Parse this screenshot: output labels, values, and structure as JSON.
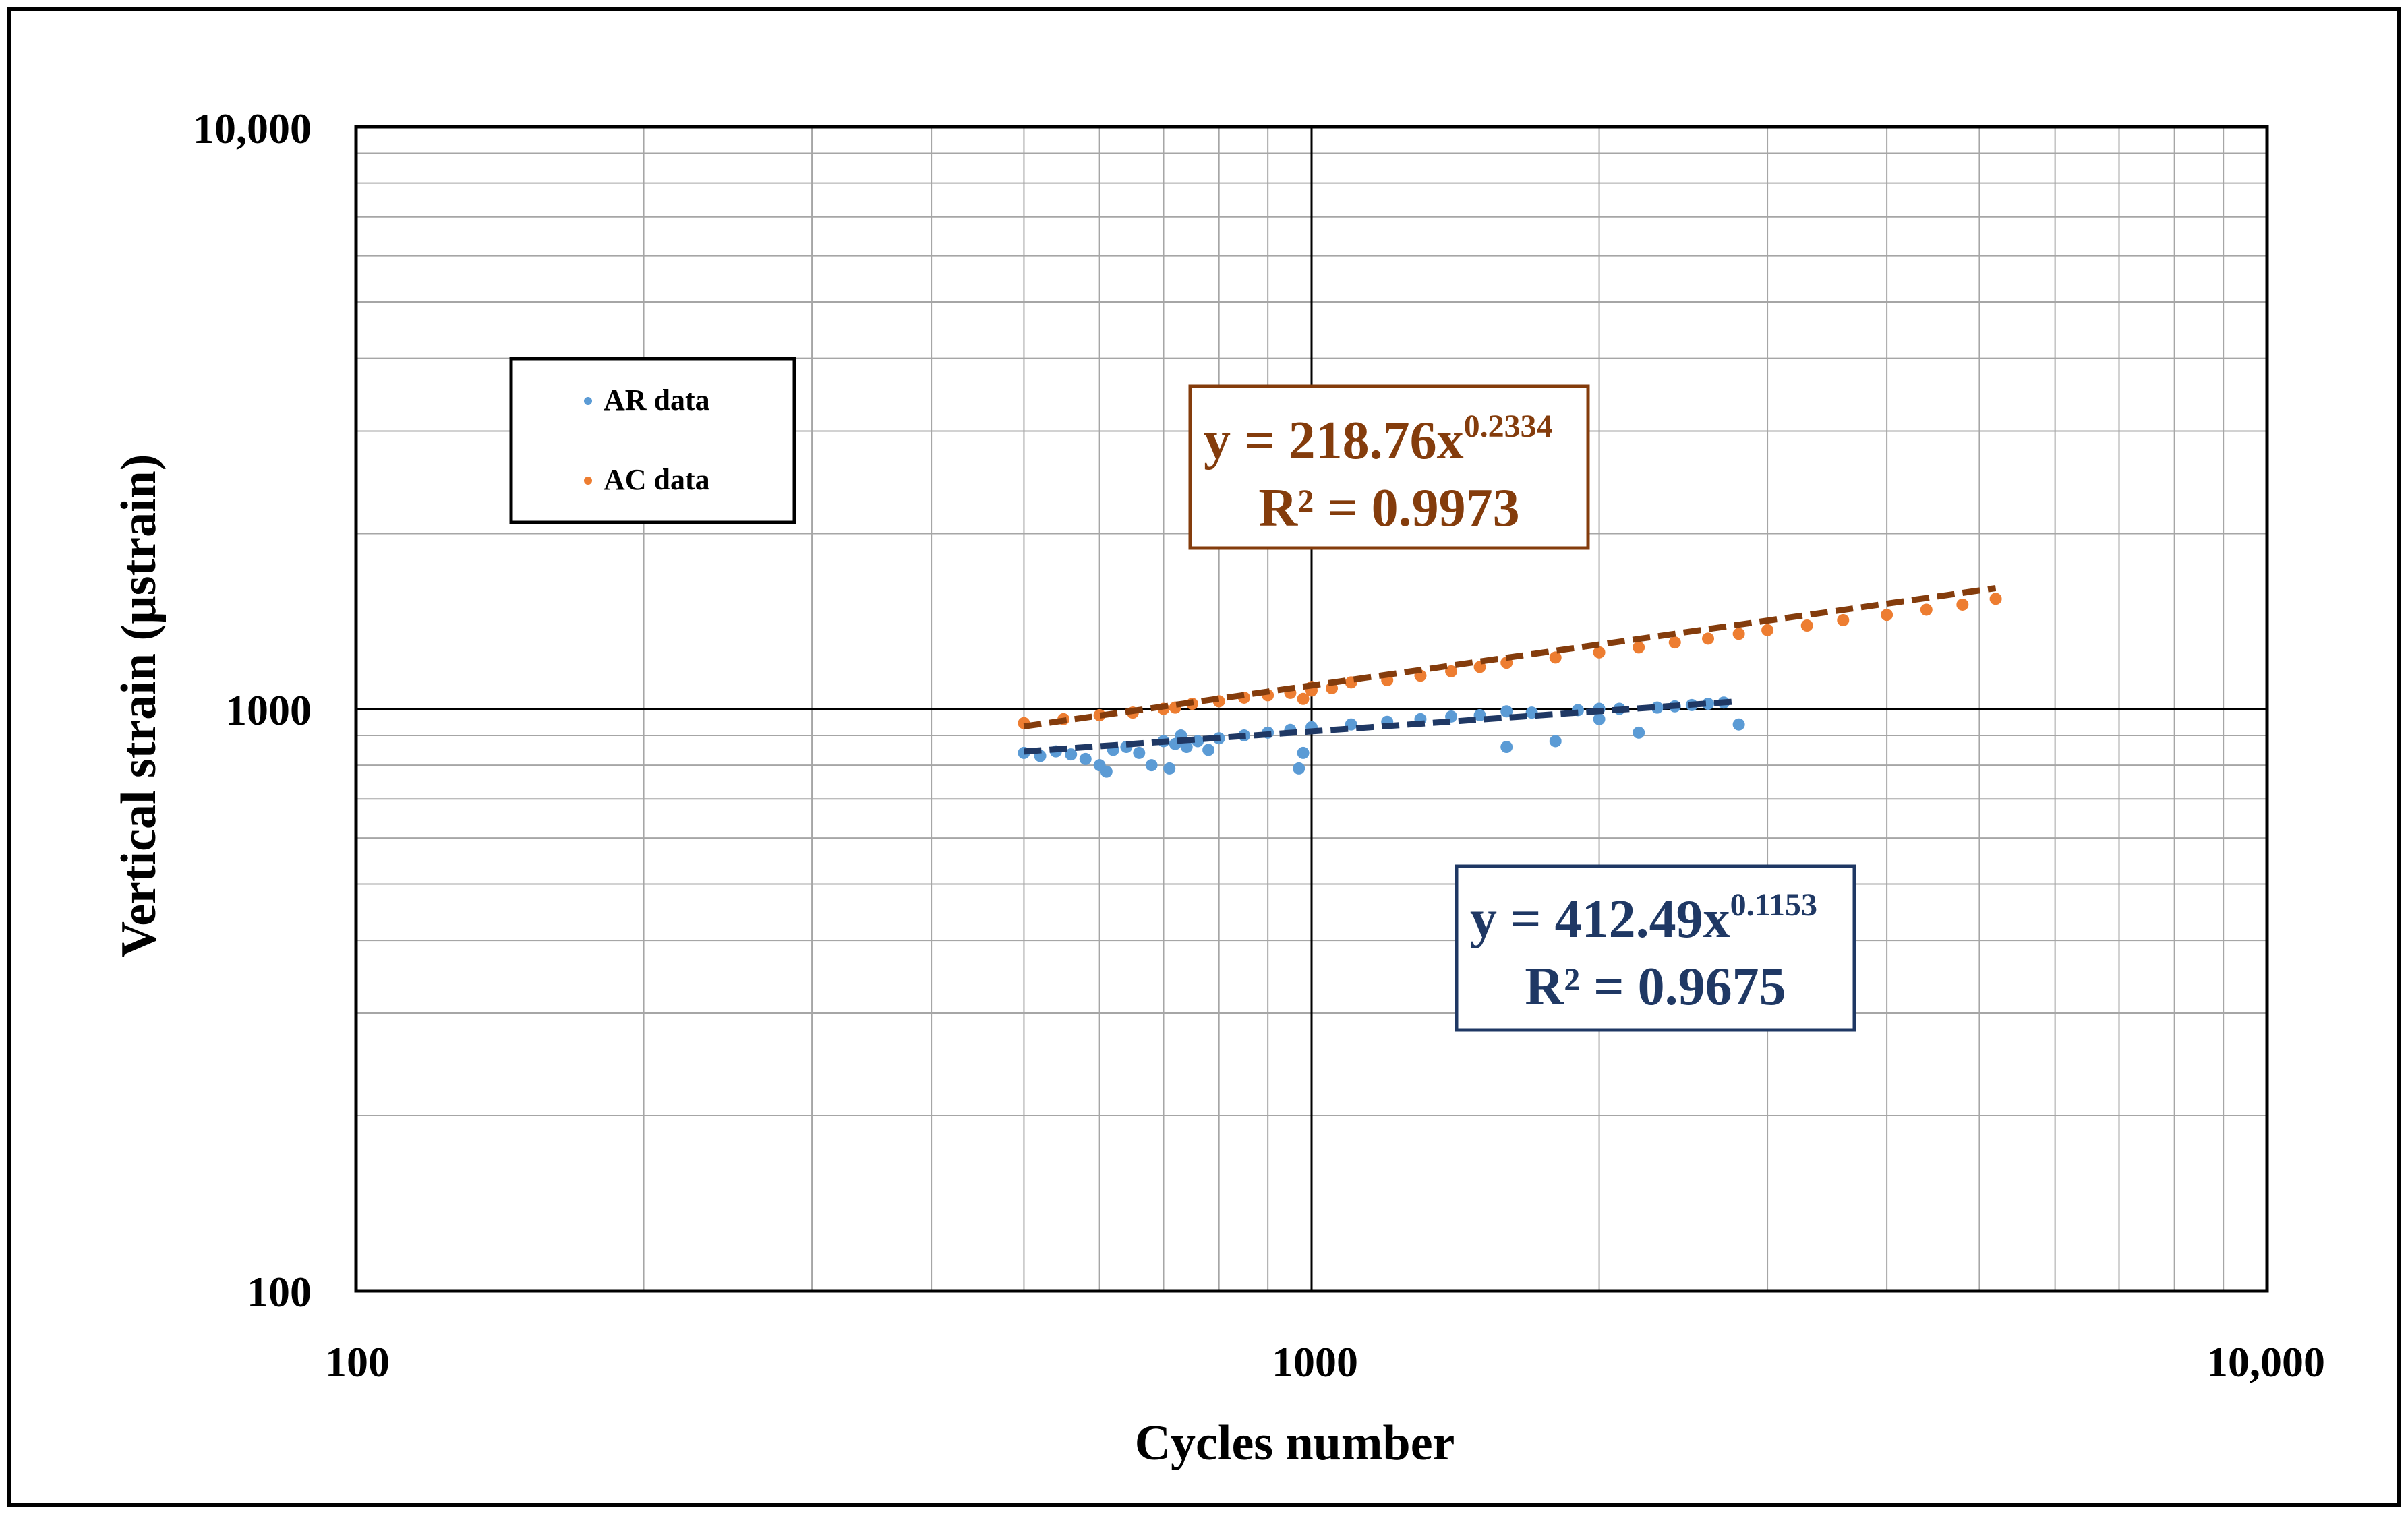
{
  "chart_data": {
    "type": "scatter",
    "scale": "log-log",
    "title": "",
    "xlabel": "Cycles number",
    "ylabel": "Vertical strain (µstrain)",
    "xlim": [
      100,
      10000
    ],
    "ylim": [
      100,
      10000
    ],
    "x_tick_labels": [
      "100",
      "1000",
      "10,000"
    ],
    "y_tick_labels": [
      "100",
      "1000",
      "10,000"
    ],
    "grid": true,
    "legend": {
      "position": "left-upper",
      "entries": [
        "AR data",
        "AC data"
      ]
    },
    "colors": {
      "ar": "#5b9bd5",
      "ac": "#ed7d31",
      "ar_trend": "#1f3864",
      "ac_trend": "#843c0c"
    },
    "series": [
      {
        "name": "AR data",
        "x": [
          500,
          520,
          540,
          560,
          580,
          600,
          610,
          620,
          640,
          660,
          680,
          700,
          710,
          720,
          730,
          740,
          760,
          780,
          800,
          850,
          900,
          950,
          970,
          980,
          1000,
          1100,
          1200,
          1300,
          1400,
          1500,
          1600,
          1600,
          1700,
          1800,
          1900,
          2000,
          2000,
          2100,
          2200,
          2300,
          2400,
          2500,
          2600,
          2700,
          2800
        ],
        "y": [
          840,
          830,
          845,
          835,
          820,
          800,
          780,
          850,
          860,
          840,
          800,
          880,
          790,
          870,
          900,
          860,
          880,
          850,
          890,
          900,
          910,
          920,
          790,
          840,
          930,
          940,
          950,
          960,
          970,
          975,
          860,
          990,
          985,
          880,
          995,
          960,
          1000,
          1000,
          910,
          1005,
          1010,
          1015,
          1020,
          1025,
          940
        ],
        "trendline": {
          "type": "power",
          "equation": "y = 412.49x",
          "exponent": "0.1153",
          "r2_label": "R² = 0.9675"
        }
      },
      {
        "name": "AC data",
        "x": [
          500,
          550,
          600,
          650,
          700,
          720,
          750,
          800,
          850,
          900,
          950,
          980,
          1000,
          1000,
          1050,
          1100,
          1200,
          1300,
          1400,
          1500,
          1600,
          1800,
          2000,
          2200,
          2400,
          2600,
          2800,
          3000,
          3300,
          3600,
          4000,
          4400,
          4800,
          5200
        ],
        "y": [
          945,
          960,
          975,
          985,
          1000,
          1005,
          1020,
          1030,
          1045,
          1055,
          1065,
          1040,
          1075,
          1090,
          1085,
          1110,
          1120,
          1140,
          1160,
          1180,
          1200,
          1225,
          1250,
          1275,
          1300,
          1320,
          1345,
          1365,
          1390,
          1420,
          1450,
          1480,
          1510,
          1545
        ],
        "trendline": {
          "type": "power",
          "equation": "y = 218.76x",
          "exponent": "0.2334",
          "r2_label": "R² = 0.9973"
        }
      }
    ],
    "trend_params": {
      "ar": {
        "a": 412.49,
        "b": 0.1153,
        "x_range": [
          500,
          2800
        ]
      },
      "ac": {
        "a": 218.76,
        "b": 0.2334,
        "x_range": [
          500,
          5200
        ]
      }
    }
  }
}
